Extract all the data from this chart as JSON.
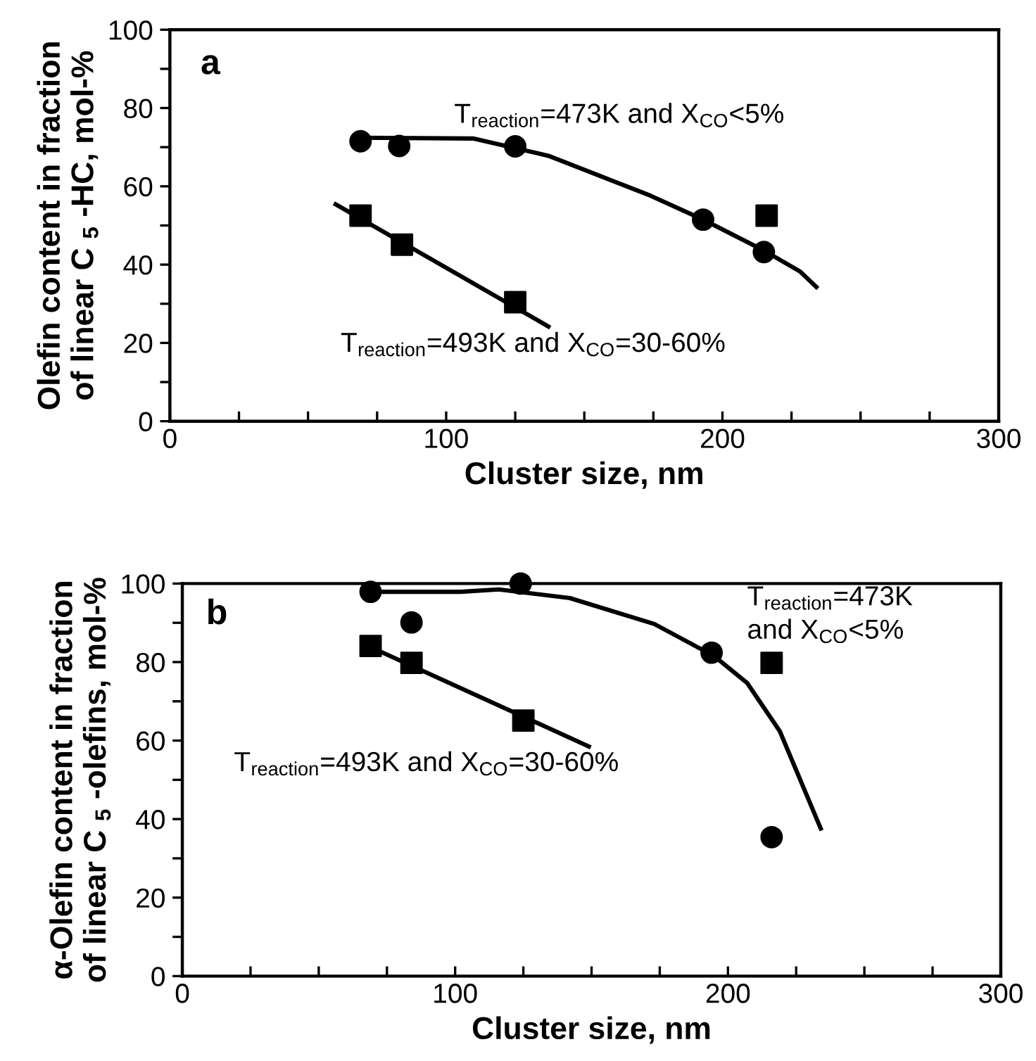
{
  "chart_data": [
    {
      "type": "scatter",
      "xlabel": "Cluster size, nm",
      "ylabel": "Olefin content in fraction\nof linear C $_{5}$ -HC, mol-%",
      "xlim": [
        0,
        300
      ],
      "ylim": [
        0,
        100
      ],
      "xticks": [
        0,
        {
          "value": 25,
          "label": null
        },
        {
          "value": 50,
          "label": null
        },
        {
          "value": 75,
          "label": null
        },
        100,
        {
          "value": 125,
          "label": null
        },
        {
          "value": 150,
          "label": null
        },
        {
          "value": 175,
          "label": null
        },
        200,
        {
          "value": 225,
          "label": null
        },
        {
          "value": 250,
          "label": null
        },
        {
          "value": 275,
          "label": null
        },
        300
      ],
      "yticks": [
        0,
        {
          "value": 10,
          "label": null
        },
        20,
        {
          "value": 30,
          "label": null
        },
        40,
        {
          "value": 50,
          "label": null
        },
        60,
        {
          "value": 70,
          "label": null
        },
        80,
        {
          "value": 90,
          "label": null
        },
        100
      ],
      "grid": false,
      "series": [
        {
          "marker": "circle",
          "color": "#000000",
          "x": [
            69,
            83,
            125,
            193,
            215
          ],
          "values": [
            71.5,
            70.3,
            70.2,
            51.5,
            43.2
          ]
        },
        {
          "marker": "square",
          "color": "#000000",
          "x": [
            69,
            84,
            125,
            216
          ],
          "values": [
            52.5,
            45.1,
            30.4,
            52.5
          ]
        },
        {
          "type": "line",
          "marker": "none",
          "line_style": "solid",
          "color": "#000000",
          "x": [
            69,
            110,
            137,
            174,
            193,
            215,
            228,
            234
          ],
          "values": [
            72.4,
            72.2,
            67.8,
            57.6,
            51.5,
            43.6,
            38.3,
            34.3
          ]
        },
        {
          "type": "line",
          "marker": "none",
          "line_style": "solid",
          "color": "#000000",
          "x": [
            60,
            137
          ],
          "values": [
            55.4,
            24.2
          ]
        }
      ],
      "annotations": [
        "a",
        "T$_{reaction}$=473K and X$_{CO}$<5%",
        "T$_{reaction}$=493K and X$_{CO}$=30-60%"
      ]
    },
    {
      "type": "scatter",
      "xlabel": "Cluster size, nm",
      "ylabel": "α-Olefin content in fraction\nof linear C $_{5}$ -olefins, mol-%",
      "xlim": [
        0,
        300
      ],
      "ylim": [
        0,
        100
      ],
      "xticks": [
        0,
        {
          "value": 25,
          "label": null
        },
        {
          "value": 50,
          "label": null
        },
        {
          "value": 75,
          "label": null
        },
        100,
        {
          "value": 125,
          "label": null
        },
        {
          "value": 150,
          "label": null
        },
        {
          "value": 175,
          "label": null
        },
        200,
        {
          "value": 225,
          "label": null
        },
        {
          "value": 250,
          "label": null
        },
        {
          "value": 275,
          "label": null
        },
        300
      ],
      "yticks": [
        0,
        {
          "value": 10,
          "label": null
        },
        20,
        {
          "value": 30,
          "label": null
        },
        40,
        {
          "value": 50,
          "label": null
        },
        60,
        {
          "value": 70,
          "label": null
        },
        80,
        {
          "value": 90,
          "label": null
        },
        100
      ],
      "grid": false,
      "series": [
        {
          "marker": "circle",
          "color": "#000000",
          "x": [
            69,
            84,
            124,
            194,
            216
          ],
          "values": [
            97.9,
            90.1,
            100,
            82.4,
            35.4
          ]
        },
        {
          "marker": "square",
          "color": "#000000",
          "x": [
            69,
            84,
            125,
            216
          ],
          "values": [
            84.1,
            79.8,
            65.1,
            79.8
          ]
        },
        {
          "type": "line",
          "marker": "none",
          "line_style": "solid",
          "color": "#000000",
          "x": [
            69,
            102,
            116,
            142,
            173,
            195,
            207,
            219,
            234
          ],
          "values": [
            97.9,
            97.9,
            98.5,
            96.3,
            89.7,
            81.5,
            74.7,
            62.4,
            37.6
          ]
        },
        {
          "type": "line",
          "marker": "none",
          "line_style": "solid",
          "color": "#000000",
          "x": [
            69,
            149
          ],
          "values": [
            83.8,
            58.5
          ]
        }
      ],
      "annotations": [
        "b",
        "T$_{reaction}$=473K\nand X$_{CO}$<5%",
        "T$_{reaction}$=493K and X$_{CO}$=30-60%"
      ]
    }
  ]
}
